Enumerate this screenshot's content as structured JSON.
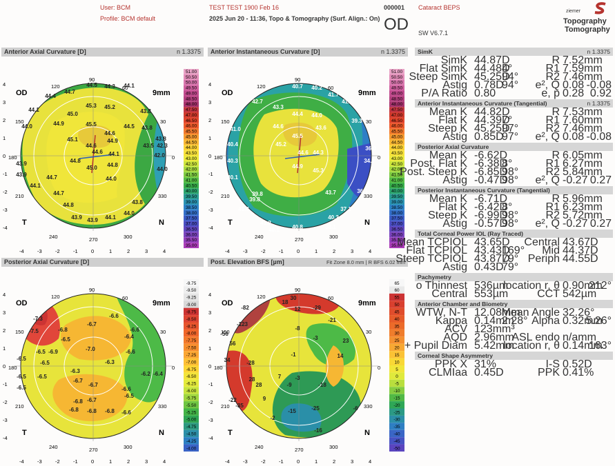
{
  "header": {
    "user": "User: BCM",
    "profile": "Profile: BCM default",
    "patient": "TEST TEST 1900 Feb 16",
    "exam": "2025 Jun 20 - 11:36, Topo & Tomography (Surf. Align.: On)",
    "id": "000001",
    "eye": "OD",
    "program": "Cataract BEPS",
    "version": "SW V6.7.1",
    "brand_small": "ziemer",
    "brand1": "Topography",
    "brand2": "Tomography",
    "brand_color": "#b5332e"
  },
  "maps": {
    "m1": {
      "title": "Anterior Axial Curvature [D]",
      "right": "n 1.3375",
      "mm": "9mm",
      "od": "OD",
      "scale": [
        "51.00",
        "50.50",
        "50.00",
        "49.50",
        "49.00",
        "48.50",
        "48.00",
        "47.50",
        "47.00",
        "46.50",
        "46.00",
        "45.50",
        "45.00",
        "44.50",
        "44.00",
        "43.50",
        "43.00",
        "42.50",
        "42.00",
        "41.50",
        "41.00",
        "40.50",
        "40.00",
        "39.50",
        "39.00",
        "38.50",
        "38.00",
        "37.50",
        "37.00",
        "36.50",
        "36.00",
        "35.50",
        "35.00"
      ],
      "values": [
        [
          "44.5",
          "45.3",
          "45.2",
          "44.6",
          "45.5",
          "45.1",
          "44.7",
          "44.9",
          "44.8",
          "44.6",
          "44.1",
          "45.0",
          "44.5",
          "44.1",
          "44.3",
          "44.7",
          "44.0",
          "44.1",
          "43.8",
          "43.9",
          "43.9",
          "44.0",
          "44.6",
          "43.9",
          "44.0",
          "43.8",
          "44.1",
          "44.1",
          "43.9",
          "44.8",
          "44.7",
          "44.7",
          "44.8",
          "44.9",
          "44.6",
          "43.9",
          "44.1",
          "44.2",
          "44.1",
          "43.8",
          "43.7",
          "42.3",
          "42.0",
          "42.5",
          "44.0"
        ]
      ]
    },
    "m2": {
      "title": "Anterior Instantaneous Curvature [D]",
      "right": "n 1.3375",
      "mm": "9mm",
      "od": "OD"
    },
    "m3": {
      "title": "Posterior Axial Curvature [D]",
      "mm": "9mm",
      "od": "OD",
      "scale": [
        "-9.75",
        "-9.50",
        "-9.25",
        "-9.00",
        "-8.75",
        "-8.50",
        "-8.25",
        "-8.00",
        "-7.75",
        "-7.50",
        "-7.25",
        "-7.00",
        "-6.75",
        "-6.50",
        "-6.25",
        "-6.00",
        "-5.75",
        "-5.50",
        "-5.25",
        "-5.00",
        "-4.75",
        "-4.50",
        "-4.25",
        "-4.00"
      ]
    },
    "m4": {
      "title": "Post. Elevation BFS [µm]",
      "right": "Fit Zone 8.0 mm | R BFS 6.02 mm",
      "mm": "9mm",
      "od": "OD",
      "scale": [
        "65",
        "60",
        "55",
        "50",
        "45",
        "40",
        "35",
        "30",
        "25",
        "20",
        "15",
        "10",
        "5",
        "0",
        "-5",
        "-10",
        "-15",
        "-20",
        "-25",
        "-30",
        "-35",
        "-40",
        "-45",
        "-50"
      ]
    }
  },
  "axis": {
    "angles": [
      "90",
      "120",
      "60",
      "150",
      "30",
      "0",
      "180",
      "210",
      "330",
      "240",
      "300",
      "270"
    ],
    "ticks": [
      "-4",
      "-3",
      "-2",
      "-1",
      "0",
      "1",
      "2",
      "3",
      "4"
    ],
    "yticks": [
      "4",
      "3",
      "2",
      "1",
      "0",
      "-1",
      "-2",
      "-3",
      "-4"
    ],
    "T": "T",
    "N": "N"
  },
  "m1vals": [
    "44.5",
    "44.3",
    "44.1",
    "44.7",
    "45.3",
    "45.2",
    "44.4",
    "44.1",
    "45.0",
    "43.8",
    "44.0",
    "44.9",
    "44.5",
    "43.8",
    "43.8",
    "45.5",
    "45.1",
    "44.6",
    "44.6",
    "43.5",
    "43.9",
    "44.8",
    "44.6",
    "44.1",
    "42.3",
    "42.0",
    "44.7",
    "45.0",
    "44.9",
    "44.8",
    "43.9",
    "44.1",
    "44.7",
    "44.8",
    "44.0",
    "43.9",
    "44.1",
    "43.9",
    "44.0",
    "43.8",
    "44.0"
  ],
  "m2vals": [
    "40.7",
    "40.2",
    "41.7",
    "42.7",
    "43.3",
    "44.4",
    "44.0",
    "41.7",
    "41.0",
    "44.6",
    "43.6",
    "39.3",
    "40.4",
    "45.5",
    "45.2",
    "44.6",
    "36.0",
    "44.3",
    "34.0",
    "40.3",
    "44.9",
    "45.3",
    "36.3",
    "40.1",
    "43.7",
    "39.8",
    "39.8",
    "37.1",
    "41.4",
    "40.2",
    "38.1",
    "41.2",
    "40.8",
    "40.1"
  ],
  "m3vals": [
    "-7.3",
    "-7.5",
    "-6.6",
    "-6.4",
    "-6.6",
    "-6.5",
    "-6.7",
    "-6.5",
    "-6.8",
    "-7.0",
    "-6.6",
    "-6.9",
    "-6.5",
    "-6.3",
    "-6.3",
    "-6.5",
    "-6.5",
    "-6.5",
    "-6.5",
    "-6.2",
    "-6.7",
    "-6.7",
    "-6.7",
    "-6.6",
    "-6.5",
    "-6.8",
    "-6.8",
    "-6.4",
    "-6.8",
    "-6.8",
    "-6.6"
  ],
  "m4vals": [
    "-82",
    "-123",
    "30",
    "18",
    "-29",
    "56",
    "-56",
    "12",
    "-8",
    "-21",
    "34",
    "-3",
    "-28",
    "28",
    "-1",
    "23",
    "14",
    "28",
    "7",
    "-22",
    "9",
    "-35",
    "-3",
    "-9",
    "-18",
    "-25",
    "-15",
    "-6",
    "-16",
    "-2"
  ],
  "panel": {
    "simk": {
      "title": "SimK",
      "right": "n 1.3375",
      "rows": [
        [
          "SimK",
          "44.87D",
          "",
          "R",
          "7.52mm",
          "",
          ""
        ],
        [
          "Flat SimK",
          "44.48D",
          "4°",
          "R1",
          "7.59mm",
          "",
          ""
        ],
        [
          "Steep SimK",
          "45.25D",
          "94°",
          "R2",
          "7.46mm",
          "",
          ""
        ],
        [
          "Astig",
          "0.78D",
          "94°",
          "e², Q",
          "0.08",
          "",
          "-0.08"
        ],
        [
          "P/A Ratio",
          "0.80",
          "",
          "e, p",
          "0.28",
          "",
          "0.92"
        ]
      ]
    },
    "ait": {
      "title": "Anterior Instantaneous Curvature (Tangential)",
      "right": "n 1.3375",
      "rows": [
        [
          "Mean K",
          "44.82D",
          "",
          "R",
          "7.53mm",
          "",
          ""
        ],
        [
          "Flat K",
          "44.39D",
          "7°",
          "R1",
          "7.60mm",
          "",
          ""
        ],
        [
          "Steep K",
          "45.25D",
          "97°",
          "R2",
          "7.46mm",
          "",
          ""
        ],
        [
          "Astig",
          "0.85D",
          "97°",
          "e², Q",
          "0.08",
          "",
          "-0.08"
        ]
      ]
    },
    "pac": {
      "title": "Posterior Axial Curvature",
      "rows": [
        [
          "Mean K",
          "-6.62D",
          "",
          "R",
          "6.05mm",
          "",
          ""
        ],
        [
          "Post. Flat K",
          "-6.38D",
          "8°",
          "R1",
          "6.27mm",
          "",
          ""
        ],
        [
          "Post. Steep K",
          "-6.85D",
          "98°",
          "R2",
          "5.84mm",
          "",
          ""
        ],
        [
          "Astig",
          "-0.47D",
          "98°",
          "e², Q",
          "-0.27",
          "",
          "0.27"
        ]
      ]
    },
    "pic": {
      "title": "Posterior Instantaneous Curvature (Tangential)",
      "rows": [
        [
          "Mean K",
          "-6.71D",
          "",
          "R",
          "5.96mm",
          "",
          ""
        ],
        [
          "Flat K",
          "-6.42D",
          "8°",
          "R1",
          "6.23mm",
          "",
          ""
        ],
        [
          "Steep K",
          "-6.99D",
          "98°",
          "R2",
          "5.72mm",
          "",
          ""
        ],
        [
          "Astig",
          "-0.57D",
          "98°",
          "e², Q",
          "-0.27",
          "",
          "0.27"
        ]
      ]
    },
    "tcp": {
      "title": "Total Corneal Power IOL (Ray Traced)",
      "rows": [
        [
          "Mean TCPIOL",
          "43.65D",
          "",
          "Central",
          "43.67D",
          "",
          ""
        ],
        [
          "Flat TCPIOL",
          "43.43D",
          "169°",
          "Mid",
          "44.37D",
          "",
          ""
        ],
        [
          "Steep TCPIOL",
          "43.87D",
          "79°",
          "Periph",
          "44.55D",
          "",
          ""
        ],
        [
          "Astig",
          "0.43D",
          "79°",
          "",
          "",
          "",
          ""
        ]
      ]
    },
    "pach": {
      "title": "Pachymetry",
      "rows": [
        [
          "o Thinnest",
          "536µm",
          "",
          "location r, θ",
          "0.90mm",
          "",
          "212°"
        ],
        [
          "Central",
          "553µm",
          "",
          "CCT",
          "542µm",
          "",
          ""
        ]
      ]
    },
    "acb": {
      "title": "Anterior Chamber and Biometry",
      "rows": [
        [
          "WTW, N-T",
          "12.08mm",
          "",
          "Mean Angle",
          "32.26°",
          "",
          ""
        ],
        [
          "Kappa",
          "0.14mm",
          "2.28°",
          "Alpha",
          "0.32mm",
          "",
          "5.26°"
        ],
        [
          "ACV",
          "123mm³",
          "",
          "",
          "",
          "",
          ""
        ],
        [
          "AQD",
          "2.96mm",
          "",
          "ASL endo",
          "n/amm",
          "",
          ""
        ],
        [
          "+ Pupil Diam",
          "5.42mm",
          "",
          "location r, θ",
          "0.14mm",
          "",
          "163°"
        ]
      ]
    },
    "csa": {
      "title": "Corneal Shape Asymmetry",
      "rows": [
        [
          "PPK X",
          "31%",
          "",
          "I-S",
          "0.52D",
          "",
          ""
        ],
        [
          "CLMIaa",
          "0.45D",
          "",
          "PPK",
          "0.41%",
          "",
          ""
        ]
      ]
    }
  }
}
